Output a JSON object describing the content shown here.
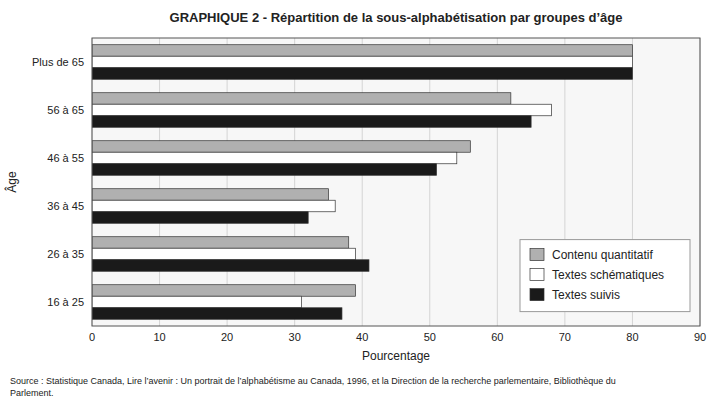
{
  "chart_data": {
    "type": "bar",
    "orientation": "horizontal",
    "title": "GRAPHIQUE 2 - Répartition de la sous-alphabétisation par groupes d’âge",
    "xlabel": "Pourcentage",
    "ylabel": "Âge",
    "categories": [
      "Plus de 65",
      "56 à 65",
      "46 à 55",
      "36 à 45",
      "26 à 35",
      "16 à 25"
    ],
    "series": [
      {
        "name": "Contenu quantitatif",
        "color": "#b0b0b0",
        "values": [
          80,
          62,
          56,
          35,
          38,
          39
        ]
      },
      {
        "name": "Textes schématiques",
        "color": "#ffffff",
        "values": [
          80,
          68,
          54,
          36,
          39,
          31
        ]
      },
      {
        "name": "Textes suivis",
        "color": "#1a1a1a",
        "values": [
          80,
          65,
          51,
          32,
          41,
          37
        ]
      }
    ],
    "xlim": [
      0,
      90
    ],
    "xticks": [
      0,
      10,
      20,
      30,
      40,
      50,
      60,
      70,
      80,
      90
    ],
    "grid": true,
    "legend": "lower right",
    "source": "Source : Statistique Canada, Lire l’avenir : Un portrait de l’alphabétisme au Canada, 1996,  et la Direction de la recherche parlementaire, Bibliothèque du\nParlement."
  }
}
